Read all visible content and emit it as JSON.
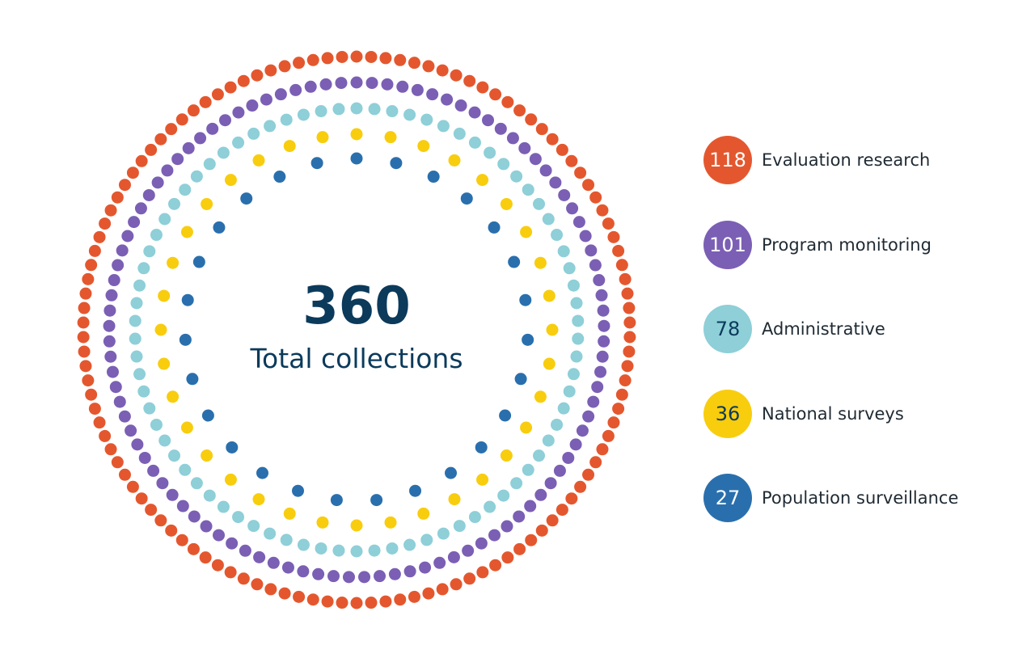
{
  "chart_data": {
    "type": "dot-rings",
    "total": {
      "value": "360",
      "label": "Total collections"
    },
    "series": [
      {
        "name": "Evaluation research",
        "value": 118,
        "color": "#e4572e",
        "badge_text_color": "#ffffff"
      },
      {
        "name": "Program monitoring",
        "value": 101,
        "color": "#7b5fb4",
        "badge_text_color": "#ffffff"
      },
      {
        "name": "Administrative",
        "value": 78,
        "color": "#8ecfd8",
        "badge_text_color": "#0b3a5b"
      },
      {
        "name": "National surveys",
        "value": 36,
        "color": "#f8cd0e",
        "badge_text_color": "#0b3a5b"
      },
      {
        "name": "Population surveillance",
        "value": 27,
        "color": "#2a6fad",
        "badge_text_color": "#ffffff"
      }
    ]
  }
}
